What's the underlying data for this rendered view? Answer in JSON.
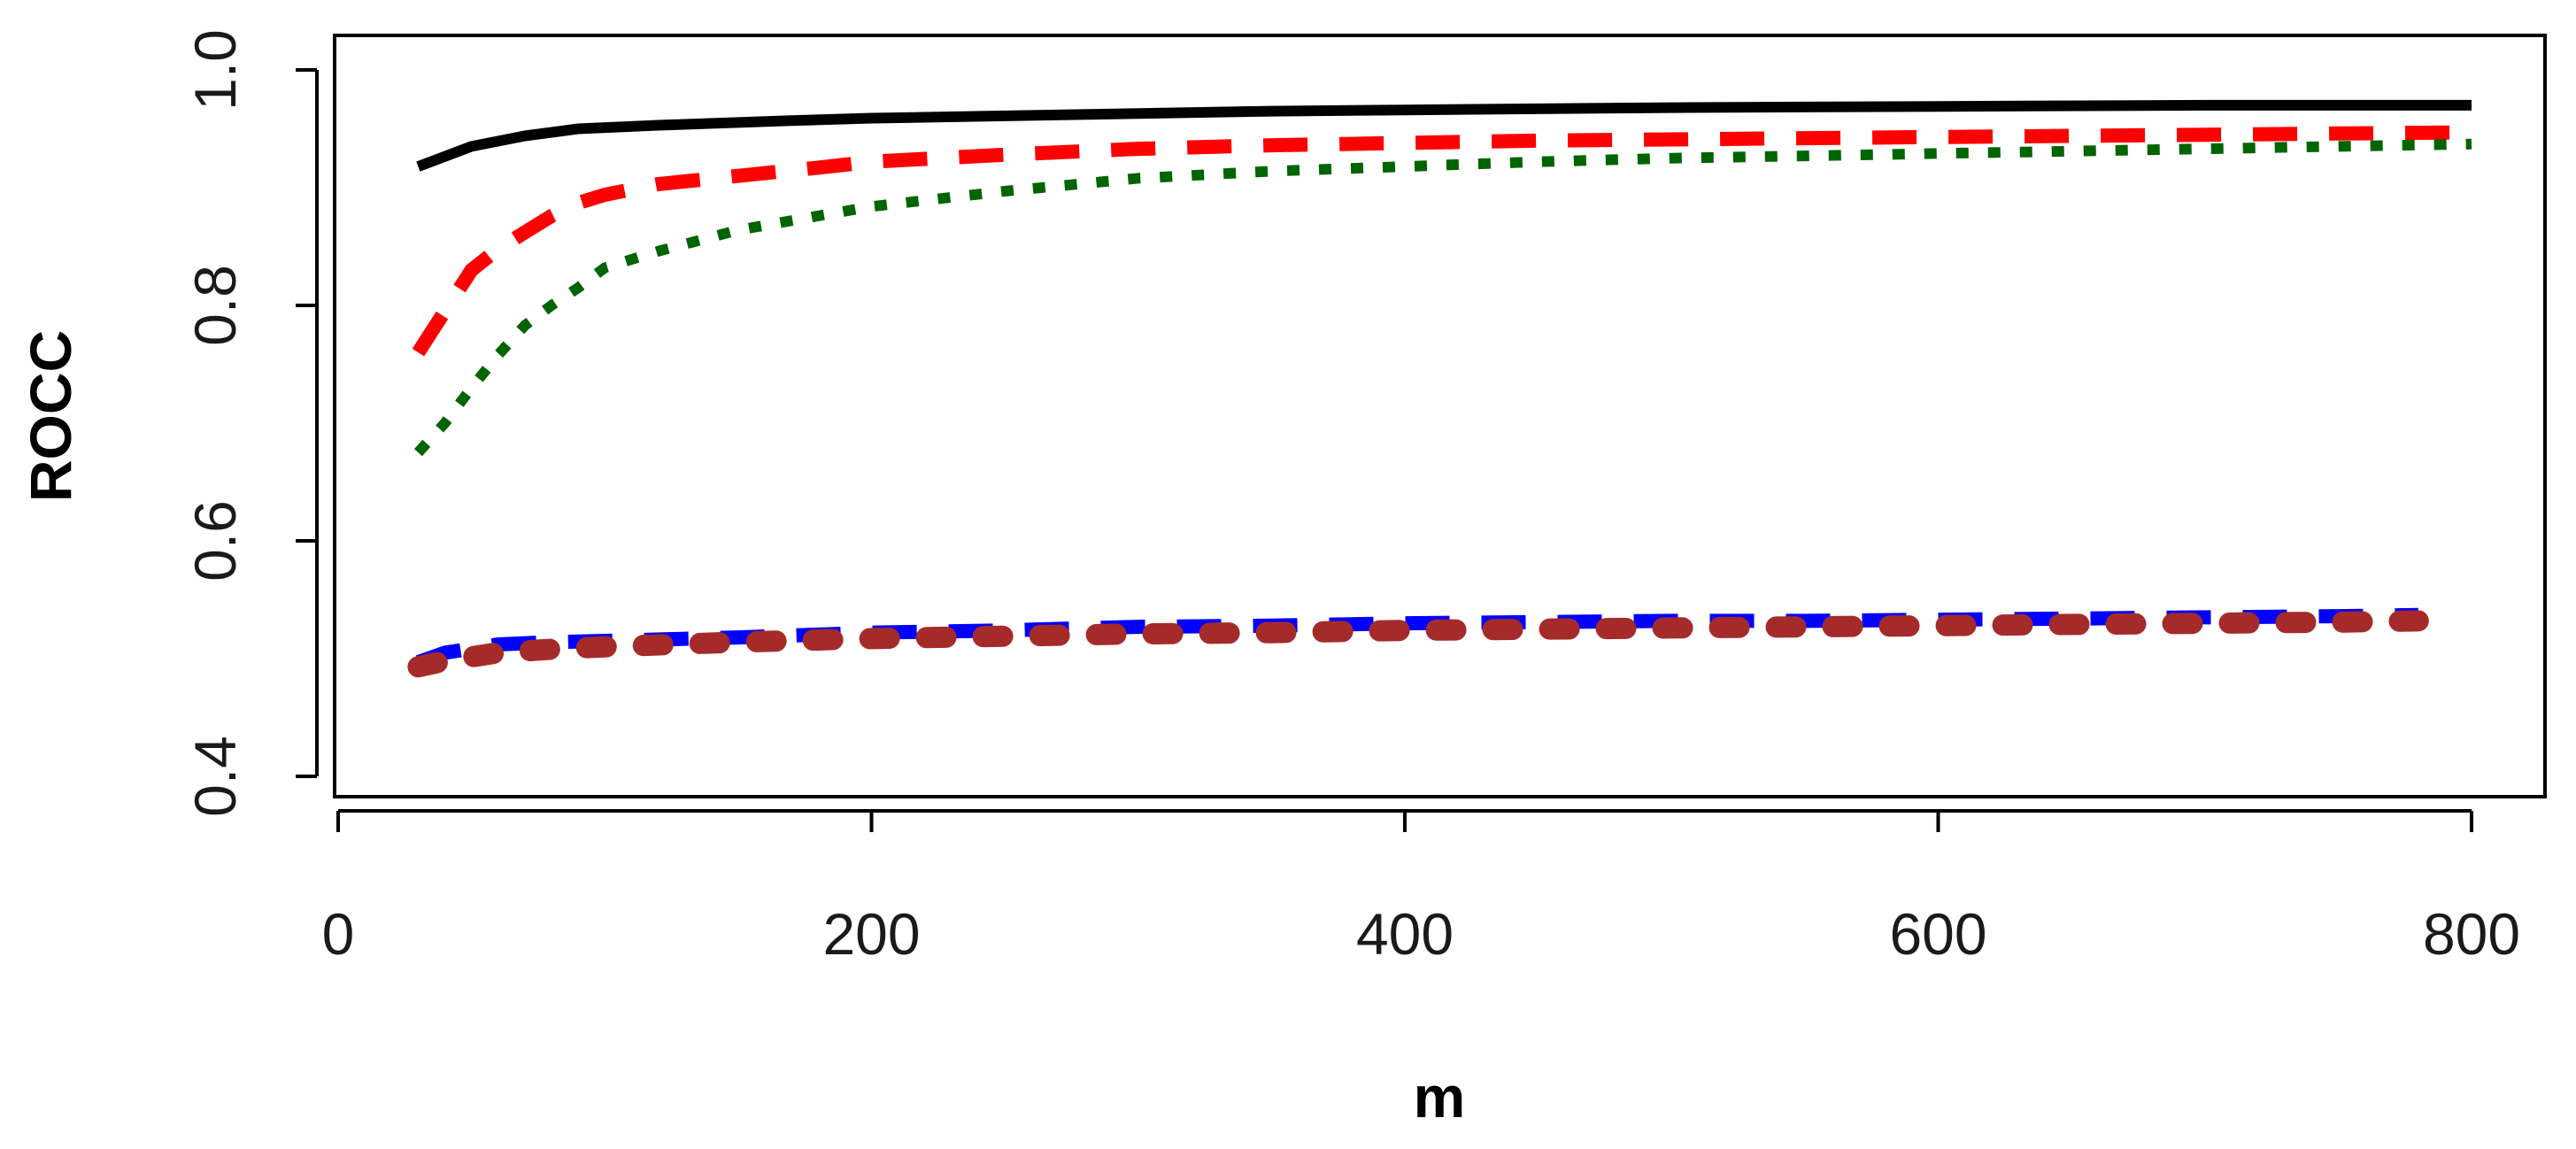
{
  "chart_data": {
    "type": "line",
    "title": "",
    "xlabel": "m",
    "ylabel": "ROCC",
    "xlim": [
      0,
      800
    ],
    "ylim": [
      0.4,
      1.0
    ],
    "xticks": [
      0,
      200,
      400,
      600,
      800
    ],
    "xtick_labels": [
      "0",
      "200",
      "400",
      "600",
      "800"
    ],
    "yticks": [
      0.4,
      0.6,
      0.8,
      1.0
    ],
    "ytick_labels": [
      "0.4",
      "0.6",
      "0.8",
      "1.0"
    ],
    "grid": false,
    "legend": "none",
    "series": [
      {
        "name": "black-solid",
        "color": "#000000",
        "dash": "solid",
        "x": [
          30,
          50,
          70,
          90,
          120,
          170,
          200,
          250,
          300,
          350,
          400,
          450,
          500,
          600,
          700,
          800
        ],
        "y": [
          0.918,
          0.935,
          0.944,
          0.95,
          0.953,
          0.957,
          0.959,
          0.961,
          0.963,
          0.965,
          0.966,
          0.967,
          0.968,
          0.969,
          0.97,
          0.97
        ]
      },
      {
        "name": "red-dashed",
        "color": "#ff0000",
        "dash": "long-dash",
        "x": [
          30,
          40,
          50,
          60,
          70,
          80,
          90,
          100,
          120,
          150,
          180,
          200,
          250,
          300,
          350,
          400,
          450,
          500,
          550,
          600,
          650,
          700,
          750,
          800
        ],
        "y": [
          0.76,
          0.795,
          0.83,
          0.848,
          0.862,
          0.876,
          0.887,
          0.894,
          0.903,
          0.91,
          0.917,
          0.922,
          0.928,
          0.933,
          0.936,
          0.938,
          0.94,
          0.941,
          0.942,
          0.943,
          0.944,
          0.945,
          0.946,
          0.947
        ]
      },
      {
        "name": "green-dotted",
        "color": "#006400",
        "dash": "dotted",
        "x": [
          30,
          40,
          50,
          60,
          70,
          80,
          90,
          100,
          120,
          150,
          180,
          200,
          250,
          300,
          350,
          400,
          450,
          500,
          550,
          600,
          650,
          700,
          750,
          800
        ],
        "y": [
          0.675,
          0.7,
          0.73,
          0.758,
          0.783,
          0.8,
          0.815,
          0.832,
          0.846,
          0.864,
          0.876,
          0.884,
          0.897,
          0.908,
          0.914,
          0.918,
          0.922,
          0.925,
          0.927,
          0.929,
          0.931,
          0.933,
          0.935,
          0.937
        ]
      },
      {
        "name": "blue-dashed",
        "color": "#0000ff",
        "dash": "long-dash",
        "x": [
          30,
          40,
          60,
          80,
          100,
          150,
          200,
          250,
          300,
          350,
          400,
          450,
          500,
          550,
          600,
          650,
          700,
          750,
          780
        ],
        "y": [
          0.497,
          0.505,
          0.512,
          0.514,
          0.515,
          0.518,
          0.522,
          0.524,
          0.527,
          0.528,
          0.53,
          0.531,
          0.532,
          0.532,
          0.533,
          0.534,
          0.535,
          0.536,
          0.537
        ]
      },
      {
        "name": "brown-thick-dashed",
        "color": "#a52a2a",
        "dash": "thick-dash",
        "x": [
          30,
          40,
          60,
          80,
          100,
          150,
          200,
          250,
          300,
          350,
          400,
          450,
          500,
          550,
          600,
          650,
          700,
          750,
          780
        ],
        "y": [
          0.493,
          0.498,
          0.505,
          0.508,
          0.51,
          0.514,
          0.517,
          0.519,
          0.521,
          0.522,
          0.524,
          0.525,
          0.526,
          0.527,
          0.528,
          0.529,
          0.53,
          0.531,
          0.532
        ]
      }
    ]
  }
}
